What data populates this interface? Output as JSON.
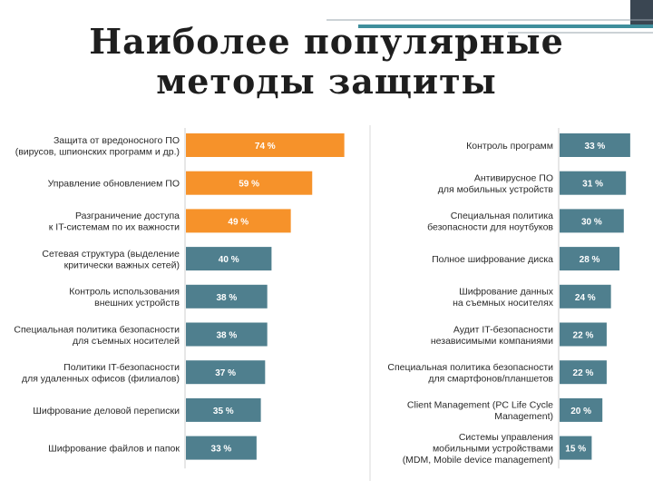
{
  "title": {
    "line1": "Наиболее популярные",
    "line2": "методы защиты"
  },
  "colors": {
    "orange": "#f6922a",
    "teal": "#4f7f8e",
    "label": "#2a2a2a",
    "title": "#1e1e1e",
    "deco_dark": "#3a4652",
    "deco_teal": "#3f8f9c"
  },
  "chart_data": [
    {
      "type": "bar",
      "orientation": "horizontal",
      "unit": "%",
      "xlim": [
        0,
        100
      ],
      "categories": [
        [
          "Защита от вредоносного ПО",
          "(вирусов, шпионских программ и др.)"
        ],
        [
          "Управление обновлением ПО"
        ],
        [
          "Разграничение доступа",
          "к IT-системам по их важности"
        ],
        [
          "Сетевая структура (выделение",
          "критически важных сетей)"
        ],
        [
          "Контроль использования",
          "внешних устройств"
        ],
        [
          "Специальная политика безопасности",
          "для съемных носителей"
        ],
        [
          "Политики IT-безопасности",
          "для удаленных офисов (филиалов)"
        ],
        [
          "Шифрование деловой переписки"
        ],
        [
          "Шифрование файлов и папок"
        ]
      ],
      "values": [
        74,
        59,
        49,
        40,
        38,
        38,
        37,
        35,
        33
      ],
      "value_labels": [
        "74 %",
        "59 %",
        "49 %",
        "40 %",
        "38 %",
        "38 %",
        "37 %",
        "35 %",
        "33 %"
      ],
      "highlight_count": 3
    },
    {
      "type": "bar",
      "orientation": "horizontal",
      "unit": "%",
      "xlim": [
        0,
        100
      ],
      "categories": [
        [
          "Контроль программ"
        ],
        [
          "Антивирусное ПО",
          "для мобильных устройств"
        ],
        [
          "Специальная политика",
          "безопасности для ноутбуков"
        ],
        [
          "Полное шифрование диска"
        ],
        [
          "Шифрование данных",
          "на съемных носителях"
        ],
        [
          "Аудит IT-безопасности",
          "независимыми компаниями"
        ],
        [
          "Специальная политика безопасности",
          "для смартфонов/планшетов"
        ],
        [
          "Client Management (PC Life Cycle",
          "Management)"
        ],
        [
          "Системы управления",
          "мобильными устройствами",
          "(MDM, Mobile device management)"
        ]
      ],
      "values": [
        33,
        31,
        30,
        28,
        24,
        22,
        22,
        20,
        15
      ],
      "value_labels": [
        "33 %",
        "31 %",
        "30 %",
        "28 %",
        "24 %",
        "22 %",
        "22 %",
        "20 %",
        "15 %"
      ],
      "highlight_count": 0
    }
  ]
}
